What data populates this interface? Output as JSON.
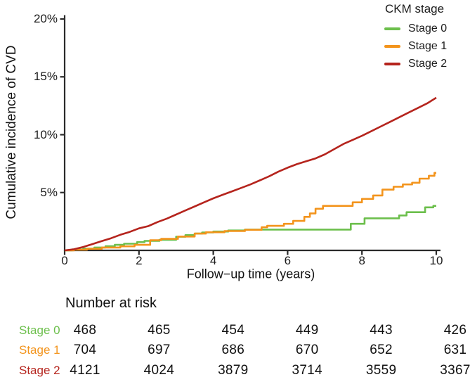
{
  "chart_data": {
    "type": "line",
    "title": "",
    "xlabel": "Follow−up time (years)",
    "ylabel": "Cumulative incidence of CVD",
    "xlim": [
      0,
      10
    ],
    "ylim": [
      0,
      20
    ],
    "grid": false,
    "xticks": {
      "values": [
        0,
        2,
        4,
        6,
        8,
        10
      ],
      "labels": [
        "0",
        "2",
        "4",
        "6",
        "8",
        "10"
      ]
    },
    "yticks": {
      "values": [
        5,
        10,
        15,
        20
      ],
      "labels": [
        "5%",
        "10%",
        "15%",
        "20%"
      ]
    },
    "legend": {
      "title": "CKM stage",
      "position": "top-right"
    },
    "axis_color": "#2a2a2a",
    "series": [
      {
        "name": "Stage 0",
        "color": "#6cbf4c",
        "line_style": "step",
        "points": [
          [
            0,
            0
          ],
          [
            0.2,
            0.08
          ],
          [
            0.5,
            0.15
          ],
          [
            0.8,
            0.25
          ],
          [
            1.1,
            0.36
          ],
          [
            1.35,
            0.48
          ],
          [
            1.6,
            0.58
          ],
          [
            1.95,
            0.72
          ],
          [
            2.15,
            0.82
          ],
          [
            2.55,
            0.92
          ],
          [
            3.0,
            1.18
          ],
          [
            3.25,
            1.32
          ],
          [
            3.5,
            1.45
          ],
          [
            3.7,
            1.55
          ],
          [
            4.0,
            1.63
          ],
          [
            4.4,
            1.72
          ],
          [
            4.85,
            1.8
          ],
          [
            7.7,
            2.3
          ],
          [
            8.07,
            2.77
          ],
          [
            9.0,
            3.02
          ],
          [
            9.2,
            3.3
          ],
          [
            9.7,
            3.72
          ],
          [
            9.92,
            3.85
          ],
          [
            10,
            3.85
          ]
        ]
      },
      {
        "name": "Stage 1",
        "color": "#f3941c",
        "line_style": "step",
        "points": [
          [
            0,
            0
          ],
          [
            0.25,
            0.06
          ],
          [
            0.6,
            0.14
          ],
          [
            1.0,
            0.25
          ],
          [
            1.5,
            0.35
          ],
          [
            1.88,
            0.48
          ],
          [
            2.3,
            0.88
          ],
          [
            2.6,
            1.0
          ],
          [
            3.05,
            1.2
          ],
          [
            3.5,
            1.45
          ],
          [
            3.8,
            1.57
          ],
          [
            4.3,
            1.67
          ],
          [
            4.85,
            1.78
          ],
          [
            5.3,
            2.0
          ],
          [
            5.45,
            2.12
          ],
          [
            5.9,
            2.3
          ],
          [
            6.15,
            2.55
          ],
          [
            6.45,
            2.9
          ],
          [
            6.6,
            3.2
          ],
          [
            6.75,
            3.6
          ],
          [
            6.95,
            3.85
          ],
          [
            7.75,
            4.15
          ],
          [
            8.0,
            4.45
          ],
          [
            8.3,
            4.75
          ],
          [
            8.55,
            5.25
          ],
          [
            8.85,
            5.5
          ],
          [
            9.1,
            5.7
          ],
          [
            9.35,
            5.85
          ],
          [
            9.55,
            6.2
          ],
          [
            9.8,
            6.45
          ],
          [
            9.95,
            6.7
          ],
          [
            10,
            6.7
          ]
        ]
      },
      {
        "name": "Stage 2",
        "color": "#b5241d",
        "line_style": "line",
        "points": [
          [
            0,
            0
          ],
          [
            0.25,
            0.1
          ],
          [
            0.5,
            0.3
          ],
          [
            0.75,
            0.55
          ],
          [
            1,
            0.8
          ],
          [
            1.25,
            1.05
          ],
          [
            1.5,
            1.35
          ],
          [
            1.75,
            1.6
          ],
          [
            2,
            1.9
          ],
          [
            2.25,
            2.1
          ],
          [
            2.5,
            2.45
          ],
          [
            2.75,
            2.75
          ],
          [
            3,
            3.1
          ],
          [
            3.25,
            3.45
          ],
          [
            3.5,
            3.8
          ],
          [
            3.75,
            4.15
          ],
          [
            4,
            4.5
          ],
          [
            4.25,
            4.8
          ],
          [
            4.5,
            5.1
          ],
          [
            4.75,
            5.4
          ],
          [
            5,
            5.7
          ],
          [
            5.25,
            6.05
          ],
          [
            5.5,
            6.4
          ],
          [
            5.75,
            6.8
          ],
          [
            6,
            7.15
          ],
          [
            6.25,
            7.45
          ],
          [
            6.5,
            7.7
          ],
          [
            6.75,
            7.95
          ],
          [
            7,
            8.3
          ],
          [
            7.25,
            8.75
          ],
          [
            7.5,
            9.2
          ],
          [
            7.75,
            9.55
          ],
          [
            8,
            9.9
          ],
          [
            8.25,
            10.3
          ],
          [
            8.5,
            10.7
          ],
          [
            8.75,
            11.1
          ],
          [
            9,
            11.5
          ],
          [
            9.25,
            11.9
          ],
          [
            9.5,
            12.3
          ],
          [
            9.75,
            12.7
          ],
          [
            10,
            13.2
          ]
        ]
      }
    ],
    "number_at_risk": {
      "title": "Number at risk",
      "time_points": [
        0,
        2,
        4,
        6,
        8,
        10
      ],
      "rows": [
        {
          "label": "Stage 0",
          "color": "#6cbf4c",
          "values": [
            468,
            465,
            454,
            449,
            443,
            426
          ]
        },
        {
          "label": "Stage 1",
          "color": "#f3941c",
          "values": [
            704,
            697,
            686,
            670,
            652,
            631
          ]
        },
        {
          "label": "Stage 2",
          "color": "#b5241d",
          "values": [
            4121,
            4024,
            3879,
            3714,
            3559,
            3367
          ]
        }
      ]
    }
  }
}
